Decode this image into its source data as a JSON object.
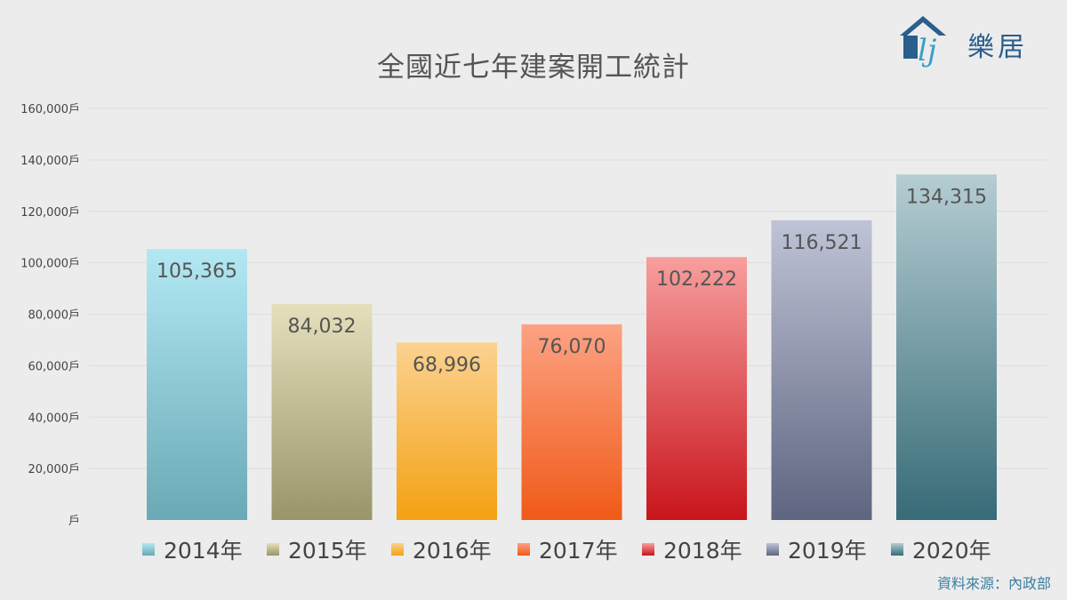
{
  "header": {
    "brand": "樂居",
    "logo_icon": "house-lj-icon",
    "source": "資料來源：內政部"
  },
  "colors": {
    "grid": "#dddddd",
    "brand": "#2a5e8c",
    "source": "#3b7fa0"
  },
  "chart_data": {
    "type": "bar",
    "title": "全國近七年建案開工統計",
    "categories": [
      "2014年",
      "2015年",
      "2016年",
      "2017年",
      "2018年",
      "2019年",
      "2020年"
    ],
    "values": [
      105365,
      84032,
      68996,
      76070,
      102222,
      116521,
      134315
    ],
    "value_labels": [
      "105,365",
      "84,032",
      "68,996",
      "76,070",
      "102,222",
      "116,521",
      "134,315"
    ],
    "ylim": [
      0,
      160000
    ],
    "yticks": [
      0,
      20000,
      40000,
      60000,
      80000,
      100000,
      120000,
      140000,
      160000
    ],
    "ytick_labels": [
      "戶",
      "20,000戶",
      "40,000戶",
      "60,000戶",
      "80,000戶",
      "100,000戶",
      "120,000戶",
      "140,000戶",
      "160,000戶"
    ],
    "grid": true,
    "legend_position": "bottom",
    "bar_colors": [
      [
        "#b2e8f3",
        "#6aa9b5"
      ],
      [
        "#e6dfbc",
        "#99956a"
      ],
      [
        "#fbd290",
        "#f4a112"
      ],
      [
        "#fca283",
        "#f05a18"
      ],
      [
        "#f79f9e",
        "#c8151c"
      ],
      [
        "#bfc3d6",
        "#5e6580"
      ],
      [
        "#b5cdd3",
        "#376b77"
      ]
    ],
    "legend_colors": [
      "#6fb8c6",
      "#a09a6c",
      "#f5a623",
      "#f26b3a",
      "#c9242c",
      "#7a7f97",
      "#4a7a86"
    ]
  }
}
